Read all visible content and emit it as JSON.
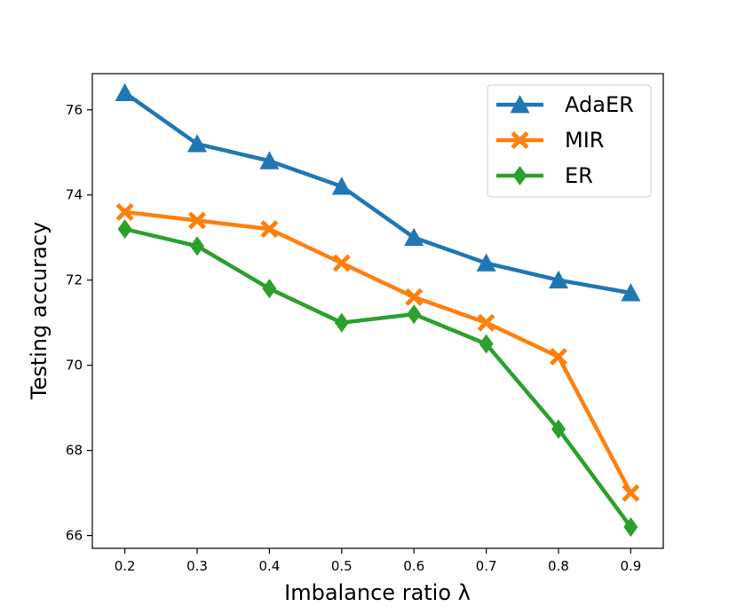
{
  "chart_data": {
    "type": "line",
    "title": "",
    "xlabel": "Imbalance ratio λ",
    "ylabel": "Testing accuracy",
    "x": [
      0.2,
      0.3,
      0.4,
      0.5,
      0.6,
      0.7,
      0.8,
      0.9
    ],
    "x_tick_labels": [
      "0.2",
      "0.3",
      "0.4",
      "0.5",
      "0.6",
      "0.7",
      "0.8",
      "0.9"
    ],
    "y_ticks": [
      66,
      68,
      70,
      72,
      74,
      76
    ],
    "y_tick_labels": [
      "66",
      "68",
      "70",
      "72",
      "74",
      "76"
    ],
    "xlim": [
      0.155,
      0.945
    ],
    "ylim": [
      65.7,
      76.85
    ],
    "grid": false,
    "legend_position": "top-right",
    "series": [
      {
        "name": "AdaER",
        "marker": "triangle",
        "color": "#1f77b4",
        "values": [
          76.4,
          75.2,
          74.8,
          74.2,
          73.0,
          72.4,
          72.0,
          71.7
        ]
      },
      {
        "name": "MIR",
        "marker": "x",
        "color": "#ff7f0e",
        "values": [
          73.6,
          73.4,
          73.2,
          72.4,
          71.6,
          71.0,
          70.2,
          67.0
        ]
      },
      {
        "name": "ER",
        "marker": "diamond",
        "color": "#2ca02c",
        "values": [
          73.2,
          72.8,
          71.8,
          71.0,
          71.2,
          70.5,
          68.5,
          66.2
        ]
      }
    ]
  }
}
